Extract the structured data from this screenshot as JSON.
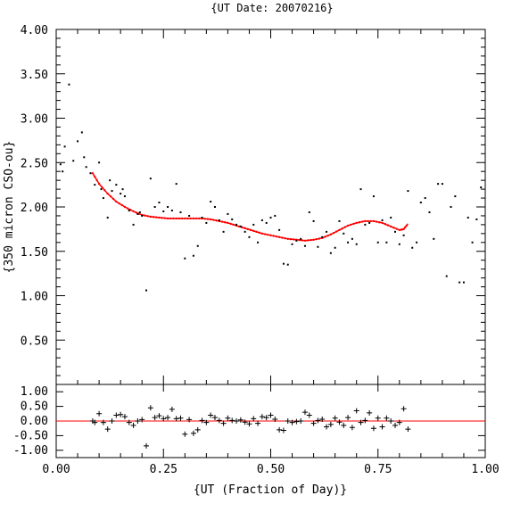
{
  "chart_data": {
    "title": "{UT Date: 20070216}",
    "xlabel": "{UT (Fraction of Day)}",
    "xlim": [
      0.0,
      1.0
    ],
    "xticks": [
      "0.00",
      "0.25",
      "0.50",
      "0.75",
      "1.00"
    ],
    "xtick_values": [
      0.0,
      0.25,
      0.5,
      0.75,
      1.0
    ],
    "colors": {
      "fit": "#ff0000",
      "zero_line": "#ff0000",
      "points": "#000000"
    },
    "panels": [
      {
        "type": "scatter",
        "ylabel": "{350 micron CSO-ou}",
        "ylim": [
          0.0,
          4.0
        ],
        "yticks": [
          "0.50",
          "1.00",
          "1.50",
          "2.00",
          "2.50",
          "3.00",
          "3.50",
          "4.00"
        ],
        "ytick_values": [
          0.5,
          1.0,
          1.5,
          2.0,
          2.5,
          3.0,
          3.5,
          4.0
        ],
        "points": {
          "x": [
            0.01,
            0.015,
            0.02,
            0.03,
            0.04,
            0.05,
            0.06,
            0.065,
            0.07,
            0.08,
            0.09,
            0.1,
            0.105,
            0.11,
            0.12,
            0.125,
            0.13,
            0.14,
            0.15,
            0.155,
            0.16,
            0.17,
            0.18,
            0.19,
            0.195,
            0.2,
            0.21,
            0.22,
            0.23,
            0.24,
            0.25,
            0.26,
            0.27,
            0.28,
            0.29,
            0.3,
            0.31,
            0.32,
            0.33,
            0.34,
            0.35,
            0.36,
            0.37,
            0.38,
            0.39,
            0.4,
            0.41,
            0.42,
            0.43,
            0.44,
            0.45,
            0.46,
            0.47,
            0.48,
            0.49,
            0.5,
            0.51,
            0.52,
            0.53,
            0.54,
            0.55,
            0.56,
            0.57,
            0.58,
            0.59,
            0.6,
            0.61,
            0.62,
            0.63,
            0.64,
            0.65,
            0.66,
            0.67,
            0.68,
            0.69,
            0.7,
            0.71,
            0.72,
            0.73,
            0.74,
            0.75,
            0.76,
            0.77,
            0.78,
            0.79,
            0.8,
            0.81,
            0.82,
            0.83,
            0.84,
            0.85,
            0.86,
            0.87,
            0.88,
            0.89,
            0.9,
            0.91,
            0.92,
            0.93,
            0.94,
            0.95,
            0.96,
            0.97,
            0.98,
            0.99
          ],
          "y": [
            2.48,
            2.4,
            2.68,
            3.38,
            2.52,
            2.74,
            2.84,
            2.56,
            2.45,
            2.38,
            2.25,
            2.5,
            2.2,
            2.1,
            1.88,
            2.3,
            2.18,
            2.25,
            2.15,
            2.2,
            2.12,
            1.96,
            1.8,
            1.92,
            1.94,
            1.9,
            1.06,
            2.32,
            2.0,
            2.05,
            1.95,
            2.0,
            1.96,
            2.26,
            1.94,
            1.42,
            1.9,
            1.45,
            1.56,
            1.88,
            1.82,
            2.06,
            2.0,
            1.85,
            1.72,
            1.92,
            1.86,
            1.8,
            1.78,
            1.72,
            1.66,
            1.8,
            1.6,
            1.85,
            1.82,
            1.88,
            1.9,
            1.74,
            1.36,
            1.35,
            1.58,
            1.62,
            1.64,
            1.56,
            1.94,
            1.84,
            1.55,
            1.66,
            1.72,
            1.48,
            1.54,
            1.84,
            1.7,
            1.6,
            1.64,
            1.58,
            2.2,
            1.8,
            1.82,
            2.12,
            1.6,
            1.85,
            1.6,
            1.88,
            1.72,
            1.58,
            1.68,
            2.18,
            1.54,
            1.6,
            2.05,
            2.1,
            1.94,
            1.64,
            2.26,
            2.26,
            1.22,
            2.0,
            2.12,
            1.15,
            1.15,
            1.88,
            1.6,
            1.86,
            2.22
          ]
        },
        "fit_curve": {
          "x": [
            0.085,
            0.1,
            0.12,
            0.14,
            0.16,
            0.18,
            0.2,
            0.22,
            0.24,
            0.26,
            0.28,
            0.3,
            0.32,
            0.34,
            0.36,
            0.38,
            0.4,
            0.42,
            0.44,
            0.46,
            0.48,
            0.5,
            0.52,
            0.54,
            0.56,
            0.58,
            0.6,
            0.62,
            0.64,
            0.66,
            0.68,
            0.7,
            0.72,
            0.74,
            0.76,
            0.78,
            0.8,
            0.81,
            0.82
          ],
          "y": [
            2.38,
            2.26,
            2.15,
            2.06,
            2.0,
            1.95,
            1.91,
            1.89,
            1.88,
            1.87,
            1.87,
            1.87,
            1.87,
            1.87,
            1.86,
            1.84,
            1.82,
            1.79,
            1.76,
            1.73,
            1.7,
            1.68,
            1.66,
            1.64,
            1.63,
            1.62,
            1.63,
            1.65,
            1.69,
            1.74,
            1.79,
            1.82,
            1.84,
            1.84,
            1.82,
            1.78,
            1.74,
            1.75,
            1.81
          ]
        }
      },
      {
        "type": "scatter",
        "ylabel": "",
        "ylim": [
          -1.25,
          1.25
        ],
        "yticks": [
          "1.00",
          "0.50",
          "0.00",
          "-0.50",
          "-1.00"
        ],
        "ytick_values": [
          1.0,
          0.5,
          0.0,
          -0.5,
          -1.0
        ],
        "zero_line": 0.0,
        "residuals": {
          "x": [
            0.085,
            0.09,
            0.1,
            0.11,
            0.12,
            0.13,
            0.14,
            0.15,
            0.16,
            0.17,
            0.18,
            0.19,
            0.2,
            0.21,
            0.22,
            0.23,
            0.24,
            0.25,
            0.26,
            0.27,
            0.28,
            0.29,
            0.3,
            0.31,
            0.32,
            0.33,
            0.34,
            0.35,
            0.36,
            0.37,
            0.38,
            0.39,
            0.4,
            0.41,
            0.42,
            0.43,
            0.44,
            0.45,
            0.46,
            0.47,
            0.48,
            0.49,
            0.5,
            0.51,
            0.52,
            0.53,
            0.54,
            0.55,
            0.56,
            0.57,
            0.58,
            0.59,
            0.6,
            0.61,
            0.62,
            0.63,
            0.64,
            0.65,
            0.66,
            0.67,
            0.68,
            0.69,
            0.7,
            0.71,
            0.72,
            0.73,
            0.74,
            0.75,
            0.76,
            0.77,
            0.78,
            0.79,
            0.8,
            0.81,
            0.82
          ],
          "y": [
            0.0,
            -0.05,
            0.25,
            -0.05,
            -0.28,
            0.0,
            0.2,
            0.22,
            0.15,
            -0.05,
            -0.15,
            0.0,
            0.05,
            -0.85,
            0.45,
            0.12,
            0.18,
            0.08,
            0.12,
            0.4,
            0.08,
            0.1,
            -0.45,
            0.05,
            -0.42,
            -0.3,
            0.02,
            -0.05,
            0.2,
            0.12,
            0.02,
            -0.08,
            0.1,
            0.02,
            0.0,
            0.04,
            -0.04,
            -0.1,
            0.08,
            -0.08,
            0.15,
            0.12,
            0.2,
            0.06,
            -0.3,
            -0.32,
            0.0,
            -0.05,
            -0.02,
            0.0,
            0.3,
            0.2,
            -0.08,
            0.02,
            0.06,
            -0.2,
            -0.12,
            0.1,
            -0.04,
            -0.15,
            0.12,
            -0.22,
            0.35,
            -0.05,
            0.02,
            0.28,
            -0.25,
            0.1,
            -0.2,
            0.1,
            0.0,
            -0.15,
            -0.05,
            0.42,
            -0.28
          ]
        }
      }
    ]
  }
}
